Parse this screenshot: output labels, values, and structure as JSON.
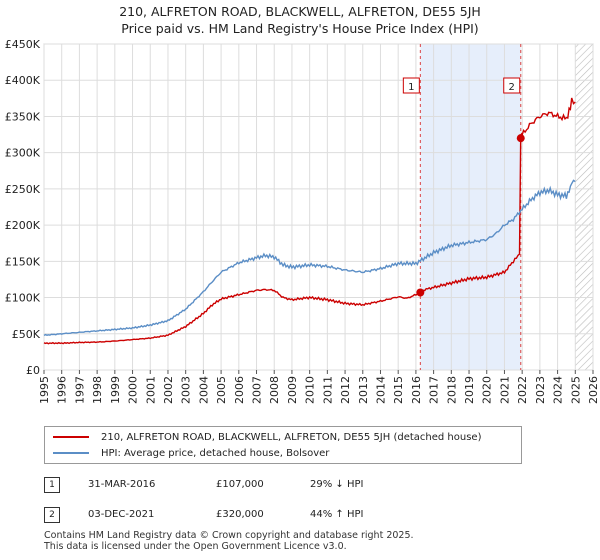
{
  "header": {
    "title": "210, ALFRETON ROAD, BLACKWELL, ALFRETON, DE55 5JH",
    "subtitle": "Price paid vs. HM Land Registry's House Price Index (HPI)"
  },
  "chart_data": {
    "type": "line",
    "title": "210, ALFRETON ROAD, BLACKWELL, ALFRETON, DE55 5JH",
    "subtitle": "Price paid vs. HM Land Registry's House Price Index (HPI)",
    "xlim": [
      1995,
      2026
    ],
    "ylim": [
      0,
      450000
    ],
    "x_ticks": [
      1995,
      1996,
      1997,
      1998,
      1999,
      2000,
      2001,
      2002,
      2003,
      2004,
      2005,
      2006,
      2007,
      2008,
      2009,
      2010,
      2011,
      2012,
      2013,
      2014,
      2015,
      2016,
      2017,
      2018,
      2019,
      2020,
      2021,
      2022,
      2023,
      2024,
      2025,
      2026
    ],
    "y_ticks": [
      0,
      50000,
      100000,
      150000,
      200000,
      250000,
      300000,
      350000,
      400000,
      450000
    ],
    "y_tick_labels": [
      "£0",
      "£50K",
      "£100K",
      "£150K",
      "£200K",
      "£250K",
      "£300K",
      "£350K",
      "£400K",
      "£450K"
    ],
    "grid": true,
    "shaded_span": [
      2016.25,
      2021.92
    ],
    "future_hatch_from": 2025.0,
    "series": [
      {
        "name": "210, ALFRETON ROAD, BLACKWELL, ALFRETON, DE55 5JH (detached house)",
        "color": "#cc0000",
        "x": [
          1995,
          1996,
          1997,
          1998,
          1999,
          2000,
          2001,
          2002,
          2003,
          2004,
          2004.5,
          2005,
          2006,
          2007,
          2007.5,
          2008,
          2008.5,
          2009,
          2010,
          2011,
          2012,
          2013,
          2014,
          2015,
          2015.5,
          2016,
          2016.25,
          2016.5,
          2017,
          2018,
          2019,
          2020,
          2021,
          2021.5,
          2021.85,
          2021.92,
          2022,
          2022.5,
          2023,
          2023.5,
          2024,
          2024.5,
          2024.8,
          2025
        ],
        "y": [
          37000,
          37000,
          38000,
          38500,
          40000,
          42000,
          44000,
          48000,
          60000,
          78000,
          90000,
          98000,
          104000,
          110000,
          111000,
          110000,
          100000,
          97000,
          100000,
          97000,
          92000,
          90000,
          95000,
          101000,
          99000,
          104000,
          107000,
          111000,
          114000,
          120000,
          126000,
          128000,
          135000,
          150000,
          160000,
          320000,
          325000,
          340000,
          350000,
          355000,
          350000,
          347000,
          372000,
          370000
        ]
      },
      {
        "name": "HPI: Average price, detached house, Bolsover",
        "color": "#5b8ec6",
        "x": [
          1995,
          1996,
          1997,
          1998,
          1999,
          2000,
          2001,
          2002,
          2003,
          2004,
          2004.5,
          2005,
          2006,
          2007,
          2007.5,
          2008,
          2008.5,
          2009,
          2010,
          2011,
          2012,
          2013,
          2014,
          2015,
          2016,
          2016.25,
          2017,
          2018,
          2019,
          2020,
          2020.5,
          2021,
          2021.5,
          2022,
          2022.5,
          2023,
          2023.5,
          2024,
          2024.5,
          2024.8,
          2025
        ],
        "y": [
          48000,
          50000,
          52000,
          54000,
          56000,
          58000,
          62000,
          68000,
          84000,
          108000,
          122000,
          135000,
          148000,
          155000,
          158000,
          156000,
          145000,
          142000,
          145000,
          143000,
          138000,
          135000,
          140000,
          147000,
          147000,
          151000,
          162000,
          172000,
          176000,
          180000,
          188000,
          200000,
          208000,
          222000,
          235000,
          245000,
          248000,
          242000,
          240000,
          258000,
          260000
        ]
      }
    ],
    "annotations": [
      {
        "label": "1",
        "x": 2016.25
      },
      {
        "label": "2",
        "x": 2021.92
      }
    ],
    "sale_points": [
      {
        "x": 2016.25,
        "y": 107000
      },
      {
        "x": 2021.92,
        "y": 320000
      }
    ]
  },
  "legend": {
    "property_label": "210, ALFRETON ROAD, BLACKWELL, ALFRETON, DE55 5JH (detached house)",
    "hpi_label": "HPI: Average price, detached house, Bolsover",
    "property_color": "#cc0000",
    "hpi_color": "#5b8ec6"
  },
  "transactions": [
    {
      "num": "1",
      "date": "31-MAR-2016",
      "price": "£107,000",
      "hpi": "29% ↓ HPI"
    },
    {
      "num": "2",
      "date": "03-DEC-2021",
      "price": "£320,000",
      "hpi": "44% ↑ HPI"
    }
  ],
  "footer": {
    "line1": "Contains HM Land Registry data © Crown copyright and database right 2025.",
    "line2": "This data is licensed under the Open Government Licence v3.0."
  }
}
